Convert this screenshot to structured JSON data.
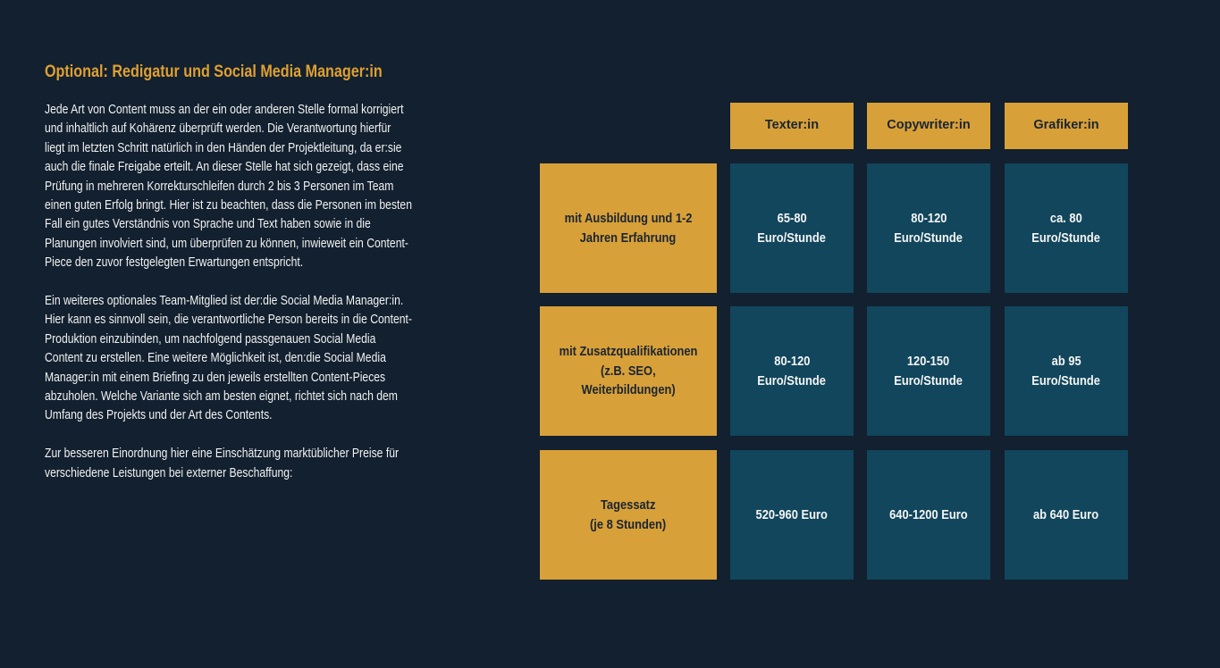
{
  "heading": "Optional: Redigatur und Social Media Manager:in",
  "paragraphs": [
    [
      "Jede Art von Content muss an der ein oder anderen Stelle formal korrigiert",
      "und inhaltlich auf Kohärenz überprüft werden. Die Verantwortung hierfür",
      "liegt im letzten Schritt natürlich in den Händen der Projektleitung, da er:sie",
      "auch die finale Freigabe erteilt. An dieser Stelle hat sich gezeigt, dass eine",
      "Prüfung in mehreren Korrekturschleifen durch 2 bis 3 Personen im Team",
      "einen guten Erfolg bringt. Hier ist zu beachten, dass die Personen im besten",
      "Fall ein gutes Verständnis von Sprache und Text haben sowie in die",
      "Planungen involviert sind, um überprüfen zu können, inwieweit ein Content-",
      "Piece den zuvor festgelegten Erwartungen entspricht."
    ],
    [
      "Ein weiteres optionales Team-Mitglied ist der:die Social Media Manager:in.",
      "Hier kann es sinnvoll sein, die verantwortliche Person bereits in die Content-",
      "Produktion einzubinden, um nachfolgend passgenauen Social Media",
      "Content zu erstellen. Eine weitere Möglichkeit ist, den:die Social Media",
      "Manager:in mit einem Briefing zu den jeweils erstellten Content-Pieces",
      "abzuholen. Welche Variante sich am besten eignet, richtet sich nach dem",
      "Umfang des Projekts und der Art des Contents."
    ],
    [
      "Zur besseren Einordnung hier eine Einschätzung marktüblicher Preise für",
      "verschiedene Leistungen bei externer Beschaffung:"
    ]
  ],
  "table": {
    "columns": [
      "Texter:in",
      "Copywriter:in",
      "Grafiker:in"
    ],
    "rows": [
      {
        "label": [
          "mit Ausbildung und 1-2",
          "Jahren Erfahrung"
        ],
        "cells": [
          [
            "65-80",
            "Euro/Stunde"
          ],
          [
            "80-120",
            "Euro/Stunde"
          ],
          [
            "ca. 80",
            "Euro/Stunde"
          ]
        ]
      },
      {
        "label": [
          "mit Zusatzqualifikationen",
          "(z.B. SEO,",
          "Weiterbildungen)"
        ],
        "cells": [
          [
            "80-120",
            "Euro/Stunde"
          ],
          [
            "120-150",
            "Euro/Stunde"
          ],
          [
            "ab 95",
            "Euro/Stunde"
          ]
        ]
      },
      {
        "label": [
          "Tagessatz",
          "(je 8 Stunden)"
        ],
        "cells": [
          [
            "520-960 Euro"
          ],
          [
            "640-1200 Euro"
          ],
          [
            "ab 640 Euro"
          ]
        ]
      }
    ]
  }
}
